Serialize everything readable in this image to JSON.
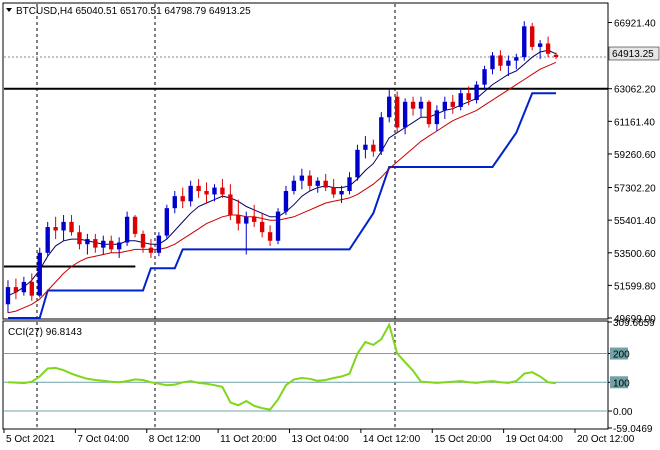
{
  "header": {
    "symbol_line": "BTCUSD,H4  65040.51 65170.51 64798.79 64913.25"
  },
  "indicator": {
    "label": "CCI(27) 96.8143"
  },
  "colors": {
    "bull": "#0000cc",
    "bear": "#dd0000",
    "ma_fast": "#000066",
    "ma_slow": "#cc0000",
    "stop_line": "#0022cc",
    "cci": "#7fd61a",
    "level": "#6fa3a8",
    "price_label_bg": "#e6e6e6"
  },
  "chart_data": [
    {
      "type": "candlestick",
      "title": "BTCUSD,H4",
      "ylim": [
        49699,
        68000
      ],
      "price_ticks": [
        "66921.40",
        "63062.20",
        "61161.40",
        "59260.60",
        "57302.20",
        "55401.40",
        "53500.60",
        "51599.80",
        "49699.00"
      ],
      "current_price": "64913.25",
      "support_line": 63062,
      "candles": [
        [
          50500,
          51900,
          50000,
          51500
        ],
        [
          51500,
          52000,
          50800,
          51200
        ],
        [
          51200,
          52100,
          51000,
          51800
        ],
        [
          51800,
          52300,
          50700,
          51000
        ],
        [
          51000,
          53800,
          50900,
          53500
        ],
        [
          53500,
          55300,
          53300,
          55000
        ],
        [
          55000,
          55600,
          54300,
          54800
        ],
        [
          54800,
          55700,
          54200,
          55300
        ],
        [
          55300,
          55700,
          54500,
          54700
        ],
        [
          54700,
          55100,
          53700,
          54000
        ],
        [
          54000,
          54600,
          53400,
          54300
        ],
        [
          54300,
          54600,
          53500,
          53800
        ],
        [
          53800,
          54500,
          53400,
          54200
        ],
        [
          54200,
          54500,
          53500,
          53700
        ],
        [
          53700,
          54400,
          53200,
          54100
        ],
        [
          54100,
          55900,
          53900,
          55600
        ],
        [
          55600,
          55700,
          54400,
          54600
        ],
        [
          54600,
          54800,
          53500,
          53800
        ],
        [
          53800,
          54300,
          53200,
          53500
        ],
        [
          53500,
          54700,
          53300,
          54500
        ],
        [
          54500,
          56300,
          54300,
          56100
        ],
        [
          56100,
          57100,
          55800,
          56800
        ],
        [
          56800,
          57300,
          56100,
          56500
        ],
        [
          56500,
          57700,
          56200,
          57400
        ],
        [
          57400,
          57800,
          56700,
          57100
        ],
        [
          57100,
          57600,
          56400,
          56900
        ],
        [
          56900,
          57500,
          56500,
          57300
        ],
        [
          57300,
          57800,
          56700,
          56900
        ],
        [
          56900,
          57500,
          55400,
          55700
        ],
        [
          55700,
          56600,
          54800,
          55200
        ],
        [
          55200,
          55900,
          53400,
          55600
        ],
        [
          55600,
          56300,
          55000,
          55300
        ],
        [
          55300,
          55800,
          54400,
          54700
        ],
        [
          54700,
          55100,
          53900,
          54200
        ],
        [
          54200,
          56100,
          54000,
          55900
        ],
        [
          55900,
          57400,
          55700,
          57100
        ],
        [
          57100,
          58000,
          56900,
          57700
        ],
        [
          57700,
          58400,
          57200,
          58000
        ],
        [
          58000,
          58300,
          57100,
          57400
        ],
        [
          57400,
          57900,
          57000,
          57700
        ],
        [
          57700,
          58100,
          57100,
          57300
        ],
        [
          57300,
          57800,
          56700,
          56900
        ],
        [
          56900,
          57400,
          56400,
          57100
        ],
        [
          57100,
          58200,
          56900,
          57900
        ],
        [
          57900,
          59800,
          57700,
          59500
        ],
        [
          59500,
          60300,
          59000,
          59800
        ],
        [
          59800,
          60100,
          59100,
          59400
        ],
        [
          59400,
          61700,
          59200,
          61400
        ],
        [
          61400,
          63000,
          61100,
          62600
        ],
        [
          62600,
          62900,
          60500,
          60800
        ],
        [
          60800,
          62500,
          60400,
          62300
        ],
        [
          62300,
          62600,
          61500,
          61900
        ],
        [
          61900,
          62600,
          61400,
          62300
        ],
        [
          62300,
          62400,
          60800,
          61000
        ],
        [
          61000,
          62100,
          60600,
          61800
        ],
        [
          61800,
          62600,
          61300,
          62300
        ],
        [
          62300,
          62700,
          61600,
          62000
        ],
        [
          62000,
          63100,
          61800,
          62800
        ],
        [
          62800,
          63200,
          62100,
          62400
        ],
        [
          62400,
          63500,
          62200,
          63300
        ],
        [
          63300,
          64400,
          63000,
          64200
        ],
        [
          64200,
          65200,
          63900,
          65000
        ],
        [
          65000,
          65300,
          64100,
          64400
        ],
        [
          64400,
          65000,
          63800,
          64700
        ],
        [
          64700,
          65100,
          64200,
          64900
        ],
        [
          64900,
          67000,
          64700,
          66700
        ],
        [
          66700,
          66900,
          65300,
          65500
        ],
        [
          65500,
          65900,
          64800,
          65700
        ],
        [
          65700,
          66100,
          64900,
          65100
        ],
        [
          65040.51,
          65170.51,
          64798.79,
          64913.25
        ]
      ],
      "ma_fast": [
        51000,
        51200,
        51500,
        51900,
        52500,
        53300,
        53900,
        54200,
        54300,
        54300,
        54200,
        54100,
        54000,
        54000,
        54000,
        54200,
        54200,
        54100,
        54000,
        54000,
        54300,
        54800,
        55300,
        55800,
        56200,
        56400,
        56600,
        56800,
        56700,
        56500,
        56200,
        56000,
        55800,
        55600,
        55600,
        55900,
        56300,
        56800,
        57100,
        57300,
        57400,
        57300,
        57300,
        57400,
        57800,
        58300,
        58700,
        59400,
        60200,
        60500,
        60800,
        61100,
        61400,
        61400,
        61600,
        61800,
        61900,
        62100,
        62300,
        62500,
        62900,
        63300,
        63600,
        63900,
        64100,
        64500,
        64900,
        65200,
        65300,
        65100
      ],
      "ma_slow": [
        50000,
        50100,
        50300,
        50500,
        50800,
        51300,
        51800,
        52300,
        52700,
        53000,
        53200,
        53300,
        53400,
        53500,
        53500,
        53600,
        53700,
        53700,
        53700,
        53700,
        53800,
        54000,
        54300,
        54600,
        54900,
        55200,
        55400,
        55600,
        55700,
        55700,
        55600,
        55600,
        55500,
        55400,
        55400,
        55500,
        55600,
        55800,
        56000,
        56200,
        56400,
        56500,
        56600,
        56700,
        56900,
        57200,
        57500,
        57900,
        58400,
        58800,
        59200,
        59600,
        60000,
        60300,
        60600,
        60900,
        61200,
        61400,
        61600,
        61800,
        62100,
        62400,
        62700,
        63000,
        63300,
        63600,
        63900,
        64200,
        64400,
        64600
      ],
      "stop_line": [
        [
          0,
          49699
        ],
        [
          4,
          49699
        ],
        [
          5,
          51300
        ],
        [
          17,
          51300
        ],
        [
          18,
          52600
        ],
        [
          21,
          52600
        ],
        [
          22,
          53700
        ],
        [
          43,
          53700
        ],
        [
          46,
          55800
        ],
        [
          48,
          58500
        ],
        [
          61,
          58500
        ],
        [
          64,
          60500
        ],
        [
          66,
          62800
        ],
        [
          69,
          62800
        ]
      ],
      "support_segment": {
        "from_index": 0,
        "to_index": 11,
        "price": 52700
      }
    },
    {
      "type": "line",
      "title": "CCI(27)",
      "ylim": [
        -59.0469,
        309.6659
      ],
      "levels": [
        200,
        100,
        0
      ],
      "level_ticks": [
        "309.6659",
        "200",
        "100",
        "0.00",
        "-59.0469"
      ],
      "values": [
        100,
        99,
        97,
        102,
        120,
        148,
        150,
        142,
        130,
        120,
        112,
        108,
        105,
        102,
        100,
        104,
        110,
        108,
        100,
        95,
        90,
        92,
        100,
        104,
        98,
        95,
        90,
        84,
        30,
        20,
        35,
        18,
        10,
        5,
        40,
        90,
        110,
        115,
        112,
        105,
        108,
        115,
        120,
        130,
        200,
        240,
        230,
        250,
        300,
        200,
        170,
        140,
        102,
        100,
        98,
        100,
        102,
        104,
        100,
        98,
        102,
        104,
        100,
        98,
        104,
        130,
        135,
        120,
        100,
        96.8
      ]
    }
  ],
  "x_axis": {
    "labels": [
      "5 Oct 2021",
      "7 Oct 04:00",
      "8 Oct 12:00",
      "11 Oct 20:00",
      "13 Oct 04:00",
      "14 Oct 12:00",
      "15 Oct 20:00",
      "19 Oct 04:00",
      "20 Oct 12:00"
    ]
  }
}
